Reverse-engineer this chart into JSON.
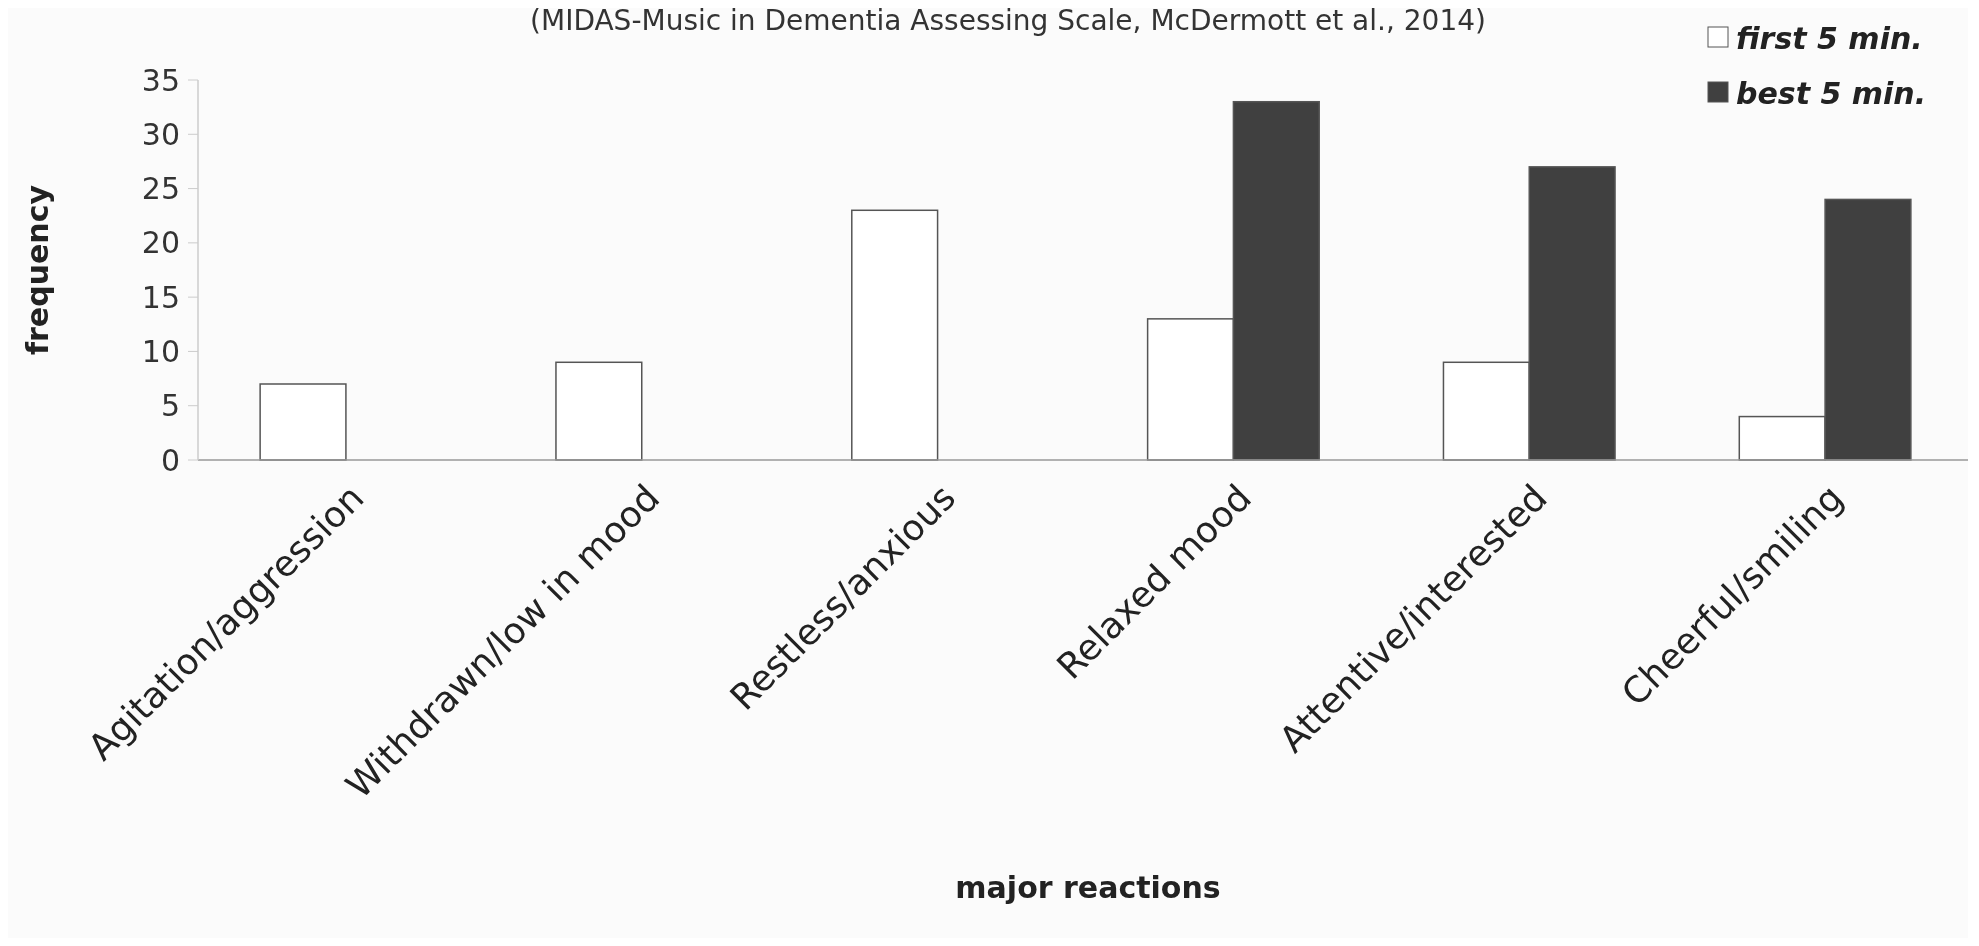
{
  "chart_data": {
    "type": "bar",
    "title": "(MIDAS-Music in Dementia Assessing Scale, McDermott et al., 2014)",
    "xlabel": "major reactions",
    "ylabel": "frequency",
    "categories": [
      "Agitation/aggression",
      "Withdrawn/low in mood",
      "Restless/anxious",
      "Relaxed mood",
      "Attentive/interested",
      "Cheerful/smiling"
    ],
    "series": [
      {
        "name": "first 5 min.",
        "color": "#ffffff",
        "values": [
          7,
          9,
          23,
          13,
          9,
          4
        ]
      },
      {
        "name": "best 5 min.",
        "color": "#404040",
        "values": [
          0,
          0,
          0,
          33,
          27,
          24
        ]
      }
    ],
    "ylim": [
      0,
      35
    ],
    "yticks": [
      0,
      5,
      10,
      15,
      20,
      25,
      30,
      35
    ],
    "grid": false,
    "legend": "top right"
  }
}
